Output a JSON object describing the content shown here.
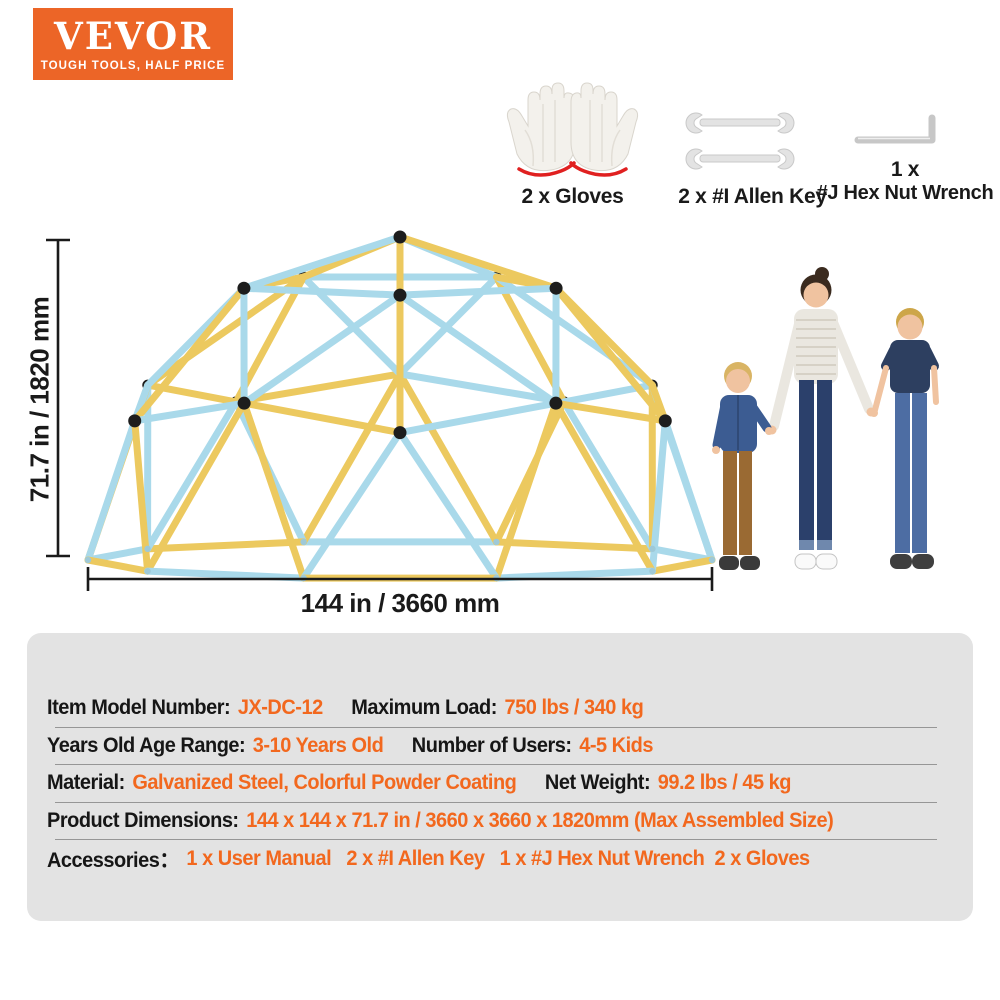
{
  "brand": {
    "name": "VEVOR",
    "tagline": "TOUGH TOOLS, HALF PRICE"
  },
  "accessories_top": {
    "gloves_label": "2 x Gloves",
    "allen_key_label": "2 x #I Allen Key",
    "hex_wrench_qty": "1 x",
    "hex_wrench_label": "#J Hex Nut Wrench"
  },
  "dimensions": {
    "height_label": "71.7 in / 1820 mm",
    "width_label": "144 in / 3660 mm"
  },
  "specs": {
    "rows": [
      {
        "l1": "Item Model Number:",
        "v1": "JX-DC-12",
        "l2": "Maximum Load:",
        "v2": "750 lbs / 340 kg"
      },
      {
        "l1": "Years Old Age Range:",
        "v1": "3-10 Years Old",
        "l2": "Number of Users:",
        "v2": "4-5 Kids"
      },
      {
        "l1": "Material:",
        "v1": "Galvanized Steel, Colorful Powder Coating",
        "l2": "Net Weight:",
        "v2": "99.2 lbs / 45 kg"
      },
      {
        "l1": "Product Dimensions:",
        "v1": "144 x 144 x 71.7 in / 3660 x 3660 x 1820mm (Max Assembled Size)"
      },
      {
        "l1": "Accessories：",
        "v1": "1 x User Manual   2 x #I Allen Key   1 x #J Hex Nut Wrench  2 x Gloves"
      }
    ]
  },
  "colors": {
    "brand_orange": "#ec6527",
    "accent_orange": "#f2681e",
    "strut_yellow": "#ecc95f",
    "strut_blue": "#a9d9ea",
    "hub_black": "#1d1d1d",
    "base_joint": "#9ec9d8",
    "panel_gray": "#e3e3e3",
    "dim_line": "#1a1a1a"
  }
}
